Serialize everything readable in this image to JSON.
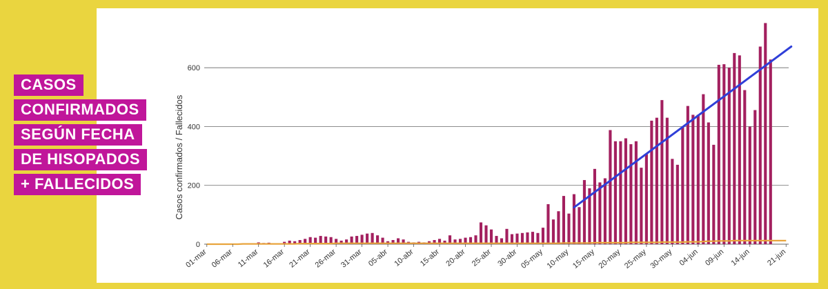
{
  "title_lines": [
    "CASOS",
    "CONFIRMADOS",
    "SEGÚN FECHA",
    "DE HISOPADOS",
    "+ FALLECIDOS"
  ],
  "colors": {
    "background": "#ead53f",
    "title_bg": "#c0169a",
    "bars": "#a3205f",
    "deaths_line": "#e8a43c",
    "trend_line": "#2f3fd8",
    "grid": "#666666"
  },
  "chart_data": {
    "type": "bar",
    "title": "",
    "xlabel": "",
    "ylabel": "Casos confirmados / Fallecidos",
    "ylim": [
      0,
      760
    ],
    "yticks": [
      0,
      200,
      400,
      600
    ],
    "grid": true,
    "x_tick_labels": [
      "01-mar",
      "06-mar",
      "11-mar",
      "16-mar",
      "21-mar",
      "26-mar",
      "31-mar",
      "05-abr",
      "10-abr",
      "15-abr",
      "20-abr",
      "25-abr",
      "30-abr",
      "05-may",
      "10-may",
      "15-may",
      "20-may",
      "25-may",
      "30-may",
      "04-jun",
      "09-jun",
      "14-jun",
      "21-jun"
    ],
    "x_tick_day_index": [
      0,
      5,
      10,
      15,
      20,
      25,
      30,
      35,
      40,
      45,
      50,
      55,
      60,
      65,
      70,
      75,
      80,
      85,
      90,
      95,
      100,
      105,
      112
    ],
    "days": 113,
    "series": [
      {
        "kind": "bar",
        "values": [
          0,
          0,
          0,
          0,
          0,
          2,
          1,
          0,
          0,
          0,
          6,
          4,
          5,
          3,
          3,
          8,
          12,
          10,
          14,
          18,
          24,
          22,
          28,
          26,
          24,
          18,
          12,
          16,
          26,
          28,
          32,
          36,
          38,
          30,
          22,
          10,
          14,
          20,
          16,
          8,
          6,
          8,
          6,
          10,
          14,
          18,
          12,
          30,
          16,
          18,
          22,
          24,
          30,
          74,
          64,
          50,
          28,
          20,
          52,
          34,
          36,
          38,
          40,
          42,
          38,
          56,
          136,
          84,
          112,
          164,
          104,
          170,
          126,
          218,
          190,
          256,
          210,
          224,
          388,
          350,
          350,
          360,
          340,
          350,
          260,
          306,
          420,
          430,
          490,
          430,
          290,
          270,
          400,
          470,
          440,
          440,
          510,
          414,
          338,
          610,
          612,
          600,
          650,
          642,
          524,
          400,
          456,
          672,
          752,
          628,
          0,
          0,
          0
        ]
      },
      {
        "kind": "line",
        "values": [
          0,
          0,
          0,
          0,
          0,
          0,
          0,
          1,
          1,
          1,
          1,
          1,
          1,
          1,
          1,
          1,
          1,
          1,
          2,
          2,
          2,
          2,
          2,
          2,
          2,
          3,
          3,
          3,
          3,
          3,
          3,
          3,
          3,
          3,
          3,
          3,
          3,
          3,
          3,
          3,
          3,
          3,
          3,
          3,
          3,
          3,
          3,
          3,
          3,
          3,
          3,
          3,
          3,
          3,
          3,
          3,
          3,
          3,
          3,
          3,
          3,
          3,
          3,
          3,
          3,
          3,
          3,
          3,
          3,
          4,
          4,
          4,
          4,
          4,
          4,
          5,
          5,
          5,
          5,
          5,
          5,
          5,
          6,
          6,
          6,
          6,
          6,
          6,
          7,
          7,
          7,
          7,
          7,
          8,
          8,
          8,
          9,
          10,
          10,
          11,
          11,
          11,
          12,
          12,
          12,
          12,
          12,
          12,
          12,
          12,
          12,
          12,
          12
        ]
      },
      {
        "kind": "trend",
        "from": [
          71,
          125
        ],
        "to": [
          113,
          672
        ]
      }
    ]
  }
}
